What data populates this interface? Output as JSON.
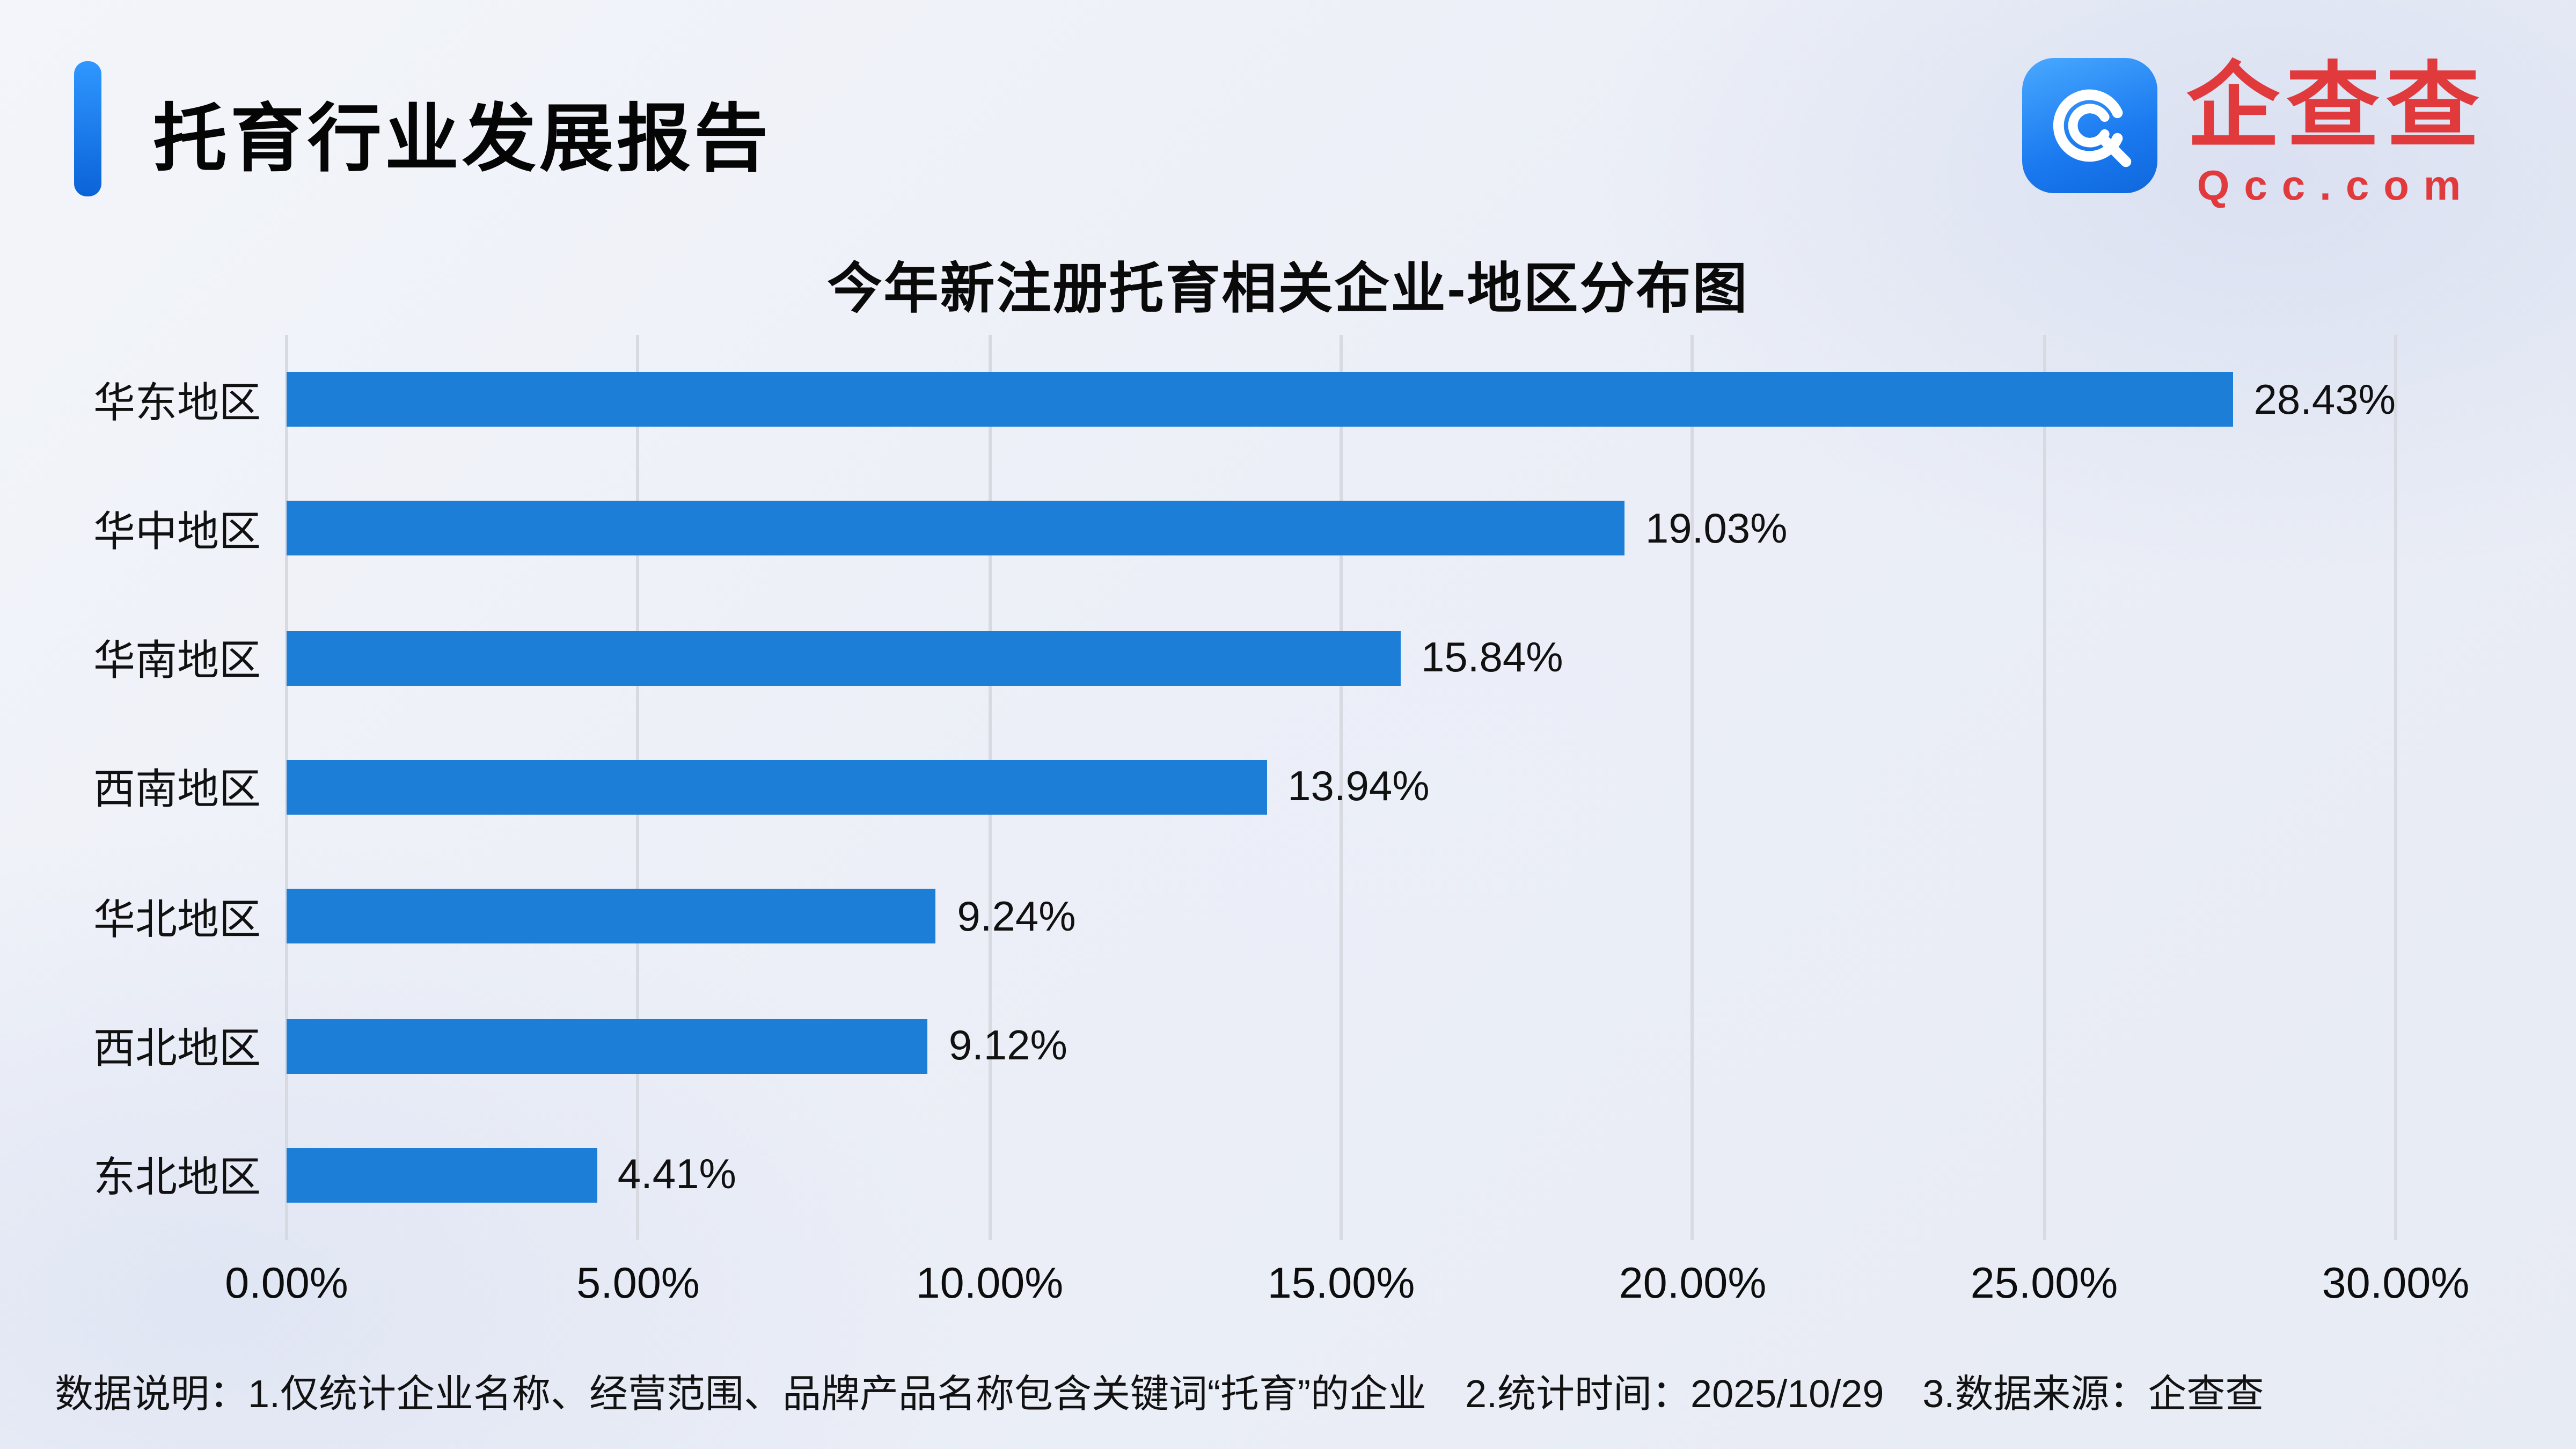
{
  "header": {
    "report_title": "托育行业发展报告",
    "logo_text": "企查查",
    "logo_domain": "Qcc.com"
  },
  "chart_data": {
    "type": "bar",
    "orientation": "horizontal",
    "title": "今年新注册托育相关企业-地区分布图",
    "categories": [
      "华东地区",
      "华中地区",
      "华南地区",
      "西南地区",
      "华北地区",
      "西北地区",
      "东北地区"
    ],
    "values": [
      28.43,
      19.03,
      15.84,
      13.94,
      9.24,
      9.12,
      4.41
    ],
    "value_labels": [
      "28.43%",
      "19.03%",
      "15.84%",
      "13.94%",
      "9.24%",
      "9.12%",
      "4.41%"
    ],
    "x_ticks": [
      "0.00%",
      "5.00%",
      "10.00%",
      "15.00%",
      "20.00%",
      "25.00%",
      "30.00%"
    ],
    "xlim": [
      0,
      30
    ],
    "grid": true,
    "legend": "none",
    "bar_color": "#1d7ed7"
  },
  "footer": {
    "note": "数据说明：1.仅统计企业名称、经营范围、品牌产品名称包含关键词“托育”的企业　2.统计时间：2025/10/29　3.数据来源：企查查"
  },
  "colors": {
    "accent_blue": "#1677f0",
    "brand_red": "#e03a3d",
    "bar_blue": "#1d7ed7",
    "grid_gray": "#d7dae1"
  }
}
